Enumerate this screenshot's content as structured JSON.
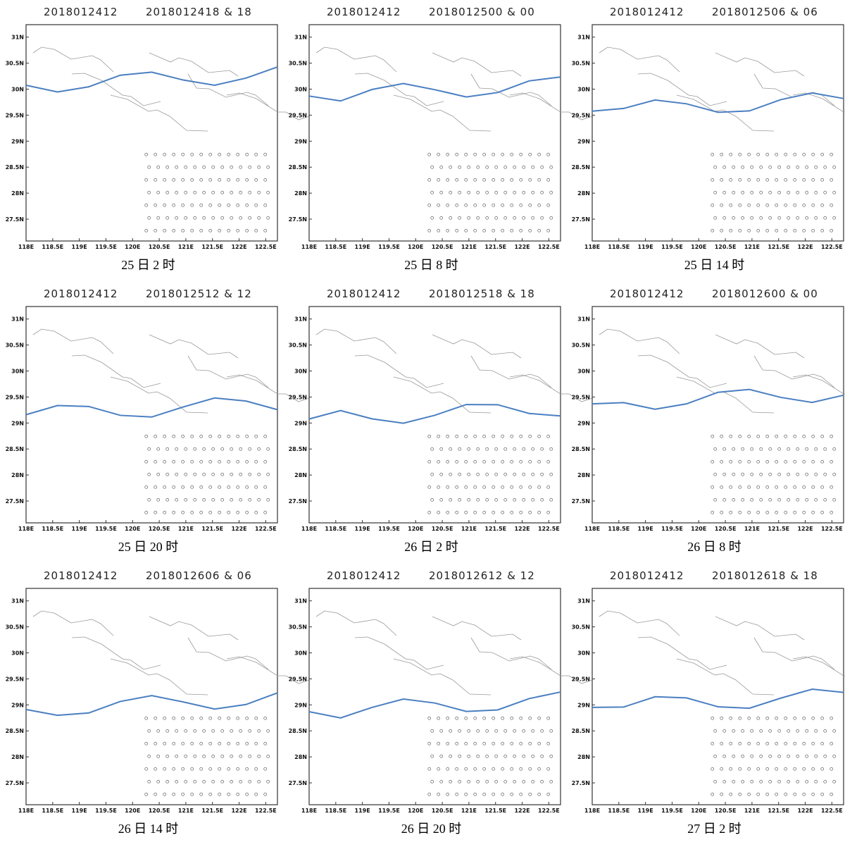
{
  "axes": {
    "xlim": [
      118,
      122.72
    ],
    "ylim": [
      27.08,
      31.24
    ],
    "xticks": [
      {
        "value": 118,
        "label": "118E"
      },
      {
        "value": 118.5,
        "label": "118.5E"
      },
      {
        "value": 119,
        "label": "119E"
      },
      {
        "value": 119.5,
        "label": "119.5E"
      },
      {
        "value": 120,
        "label": "120E"
      },
      {
        "value": 120.5,
        "label": "120.5E"
      },
      {
        "value": 121,
        "label": "121E"
      },
      {
        "value": 121.5,
        "label": "121.5E"
      },
      {
        "value": 122,
        "label": "122E"
      },
      {
        "value": 122.5,
        "label": "122.5E"
      }
    ],
    "yticks": [
      {
        "value": 27.5,
        "label": "27.5N"
      },
      {
        "value": 28,
        "label": "28N"
      },
      {
        "value": 28.5,
        "label": "28.5N"
      },
      {
        "value": 29,
        "label": "29N"
      },
      {
        "value": 29.5,
        "label": "29.5N"
      },
      {
        "value": 30,
        "label": "30N"
      },
      {
        "value": 30.5,
        "label": "30.5N"
      },
      {
        "value": 31,
        "label": "31N"
      }
    ]
  },
  "panels": [
    {
      "header_left": "2018012412",
      "header_right": "2018012418 & 18",
      "caption": "25 日 2 时"
    },
    {
      "header_left": "2018012412",
      "header_right": "2018012500 & 00",
      "caption": "25 日 8 时"
    },
    {
      "header_left": "2018012412",
      "header_right": "2018012506 & 06",
      "caption": "25 日 14 时"
    },
    {
      "header_left": "2018012412",
      "header_right": "2018012512 & 12",
      "caption": "25 日 20 时"
    },
    {
      "header_left": "2018012412",
      "header_right": "2018012518 & 18",
      "caption": "26 日 2 时"
    },
    {
      "header_left": "2018012412",
      "header_right": "2018012600 & 00",
      "caption": "26 日 8 时"
    },
    {
      "header_left": "2018012412",
      "header_right": "2018012606 & 06",
      "caption": "26 日 14 时"
    },
    {
      "header_left": "2018012412",
      "header_right": "2018012612 & 12",
      "caption": "26 日 20 时"
    },
    {
      "header_left": "2018012412",
      "header_right": "2018012618 & 18",
      "caption": "27 日 2 时"
    }
  ]
}
